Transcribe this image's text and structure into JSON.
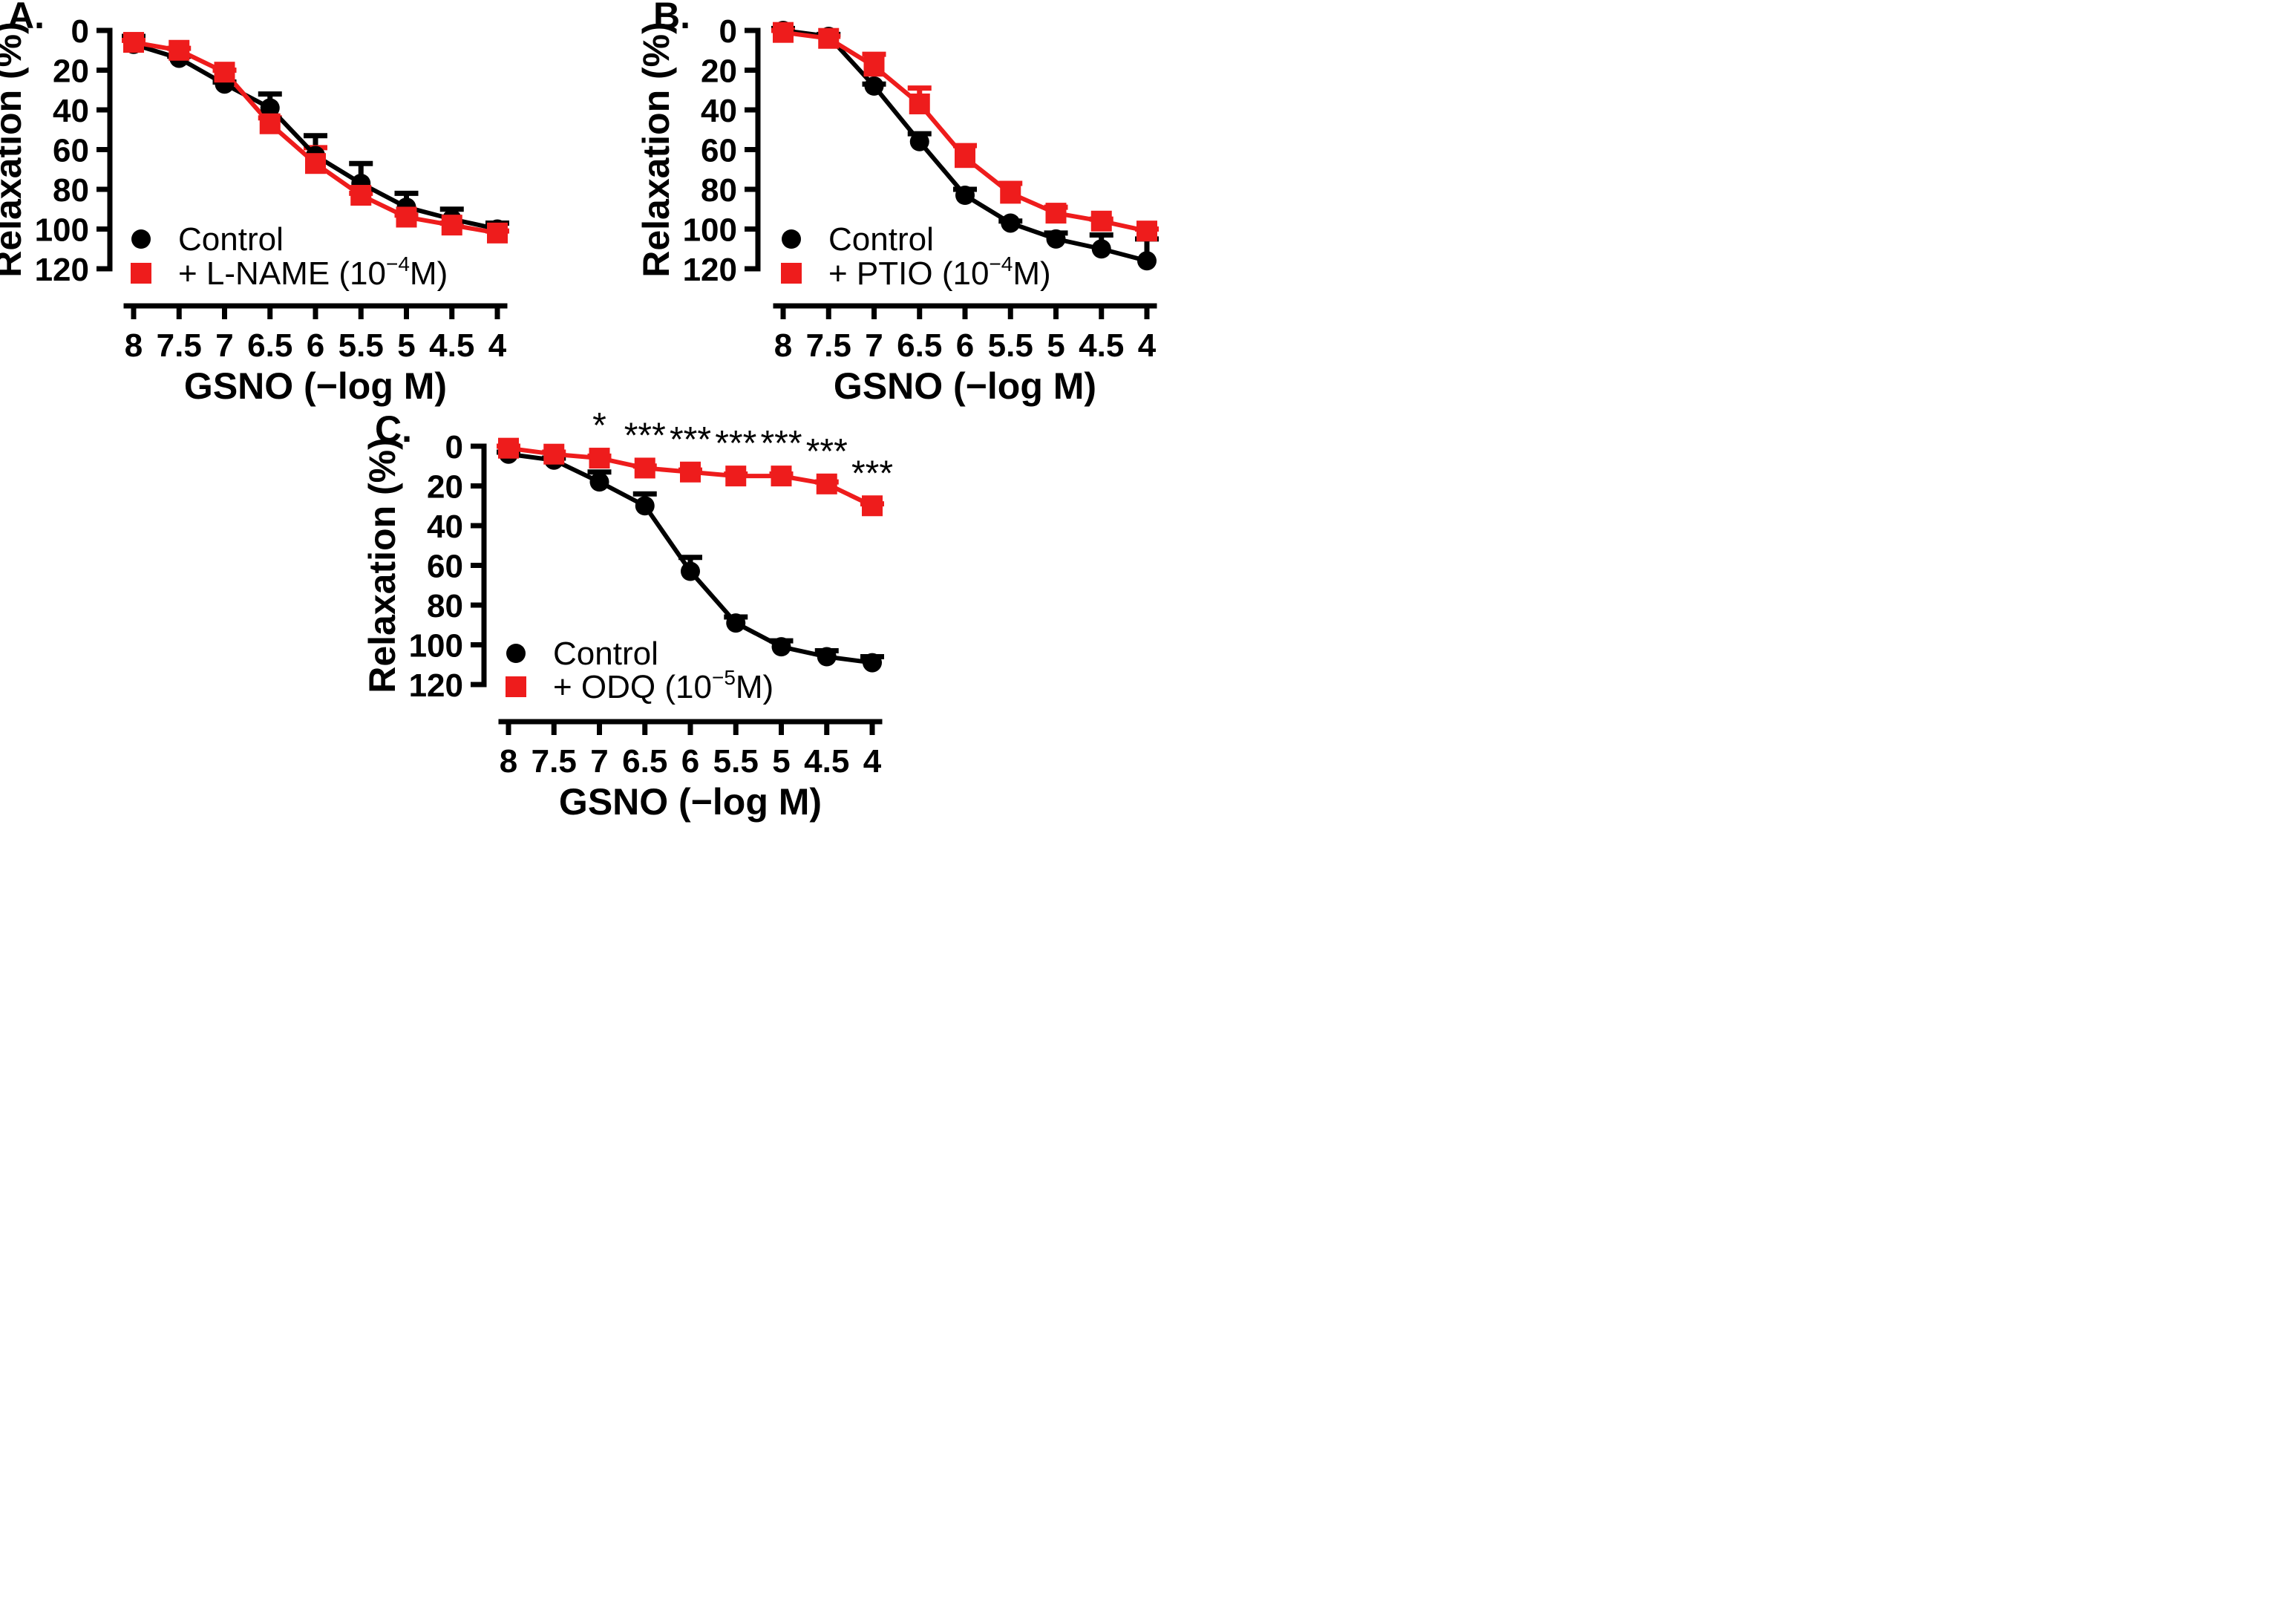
{
  "chart_data": [
    {
      "panel_label": "A.",
      "type": "line",
      "xlabel": "GSNO (−log M)",
      "ylabel": "Relaxation (%)",
      "x_ticks": [
        "8",
        "7.5",
        "7",
        "6.5",
        "6",
        "5.5",
        "5",
        "4.5",
        "4"
      ],
      "x": [
        8,
        7.5,
        7,
        6.5,
        6,
        5.5,
        5,
        4.5,
        4
      ],
      "xlim": [
        8,
        4
      ],
      "y_ticks": [
        "0",
        "20",
        "40",
        "60",
        "80",
        "100",
        "120"
      ],
      "ylim": [
        0,
        120
      ],
      "y_inverted": true,
      "legend_position": "bottom-left",
      "series": [
        {
          "name": "Control",
          "legend_label": "Control",
          "marker": "circle",
          "color": "#000000",
          "values": [
            7,
            14,
            27,
            39,
            63,
            77,
            89,
            95,
            100
          ],
          "errors": [
            4,
            1,
            1,
            7,
            10,
            10,
            7,
            5,
            3
          ]
        },
        {
          "name": "+ L-NAME",
          "legend_label": "+ L-NAME (10",
          "legend_sup": "−4",
          "legend_suffix": "M)",
          "marker": "square",
          "color": "#ee1c1c",
          "values": [
            6,
            10,
            21,
            47,
            67,
            83,
            94,
            98,
            102
          ],
          "errors": [
            1,
            1,
            1,
            3,
            8,
            1,
            1,
            1,
            1
          ]
        }
      ]
    },
    {
      "panel_label": "B.",
      "type": "line",
      "xlabel": "GSNO (−log M)",
      "ylabel": "Relaxation (%)",
      "x_ticks": [
        "8",
        "7.5",
        "7",
        "6.5",
        "6",
        "5.5",
        "5",
        "4.5",
        "4"
      ],
      "x": [
        8,
        7.5,
        7,
        6.5,
        6,
        5.5,
        5,
        4.5,
        4
      ],
      "xlim": [
        8,
        4
      ],
      "y_ticks": [
        "0",
        "20",
        "40",
        "60",
        "80",
        "100",
        "120"
      ],
      "ylim": [
        0,
        120
      ],
      "y_inverted": true,
      "legend_position": "bottom-left",
      "series": [
        {
          "name": "Control",
          "legend_label": "Control",
          "marker": "circle",
          "color": "#000000",
          "values": [
            0,
            3,
            28,
            56,
            83,
            97,
            105,
            110,
            116
          ],
          "errors": [
            1,
            1,
            1,
            4,
            3,
            1,
            3,
            7,
            11
          ]
        },
        {
          "name": "+ PTIO",
          "legend_label": "+ PTIO (10",
          "legend_sup": "−4",
          "legend_suffix": "M)",
          "marker": "square",
          "color": "#ee1c1c",
          "values": [
            1,
            4,
            18,
            37,
            64,
            82,
            92,
            96,
            101
          ],
          "errors": [
            1,
            1,
            6,
            8,
            6,
            5,
            3,
            1,
            1
          ]
        }
      ]
    },
    {
      "panel_label": "C.",
      "type": "line",
      "xlabel": "GSNO (−log M)",
      "ylabel": "Relaxation (%)",
      "x_ticks": [
        "8",
        "7.5",
        "7",
        "6.5",
        "6",
        "5.5",
        "5",
        "4.5",
        "4"
      ],
      "x": [
        8,
        7.5,
        7,
        6.5,
        6,
        5.5,
        5,
        4.5,
        4
      ],
      "xlim": [
        8,
        4
      ],
      "y_ticks": [
        "0",
        "20",
        "40",
        "60",
        "80",
        "100",
        "120"
      ],
      "ylim": [
        0,
        120
      ],
      "y_inverted": true,
      "legend_position": "bottom-left",
      "annotations": [
        "",
        "",
        "*",
        "***",
        "***",
        "***",
        "***",
        "***",
        "***"
      ],
      "series": [
        {
          "name": "Control",
          "legend_label": "Control",
          "marker": "circle",
          "color": "#000000",
          "values": [
            4,
            7,
            18,
            30,
            63,
            89,
            101,
            106,
            109
          ],
          "errors": [
            1,
            1,
            5,
            6,
            7,
            3,
            3,
            3,
            3
          ]
        },
        {
          "name": "+ ODQ",
          "legend_label": "+ ODQ (10",
          "legend_sup": "−5",
          "legend_suffix": "M)",
          "marker": "square",
          "color": "#ee1c1c",
          "values": [
            1,
            4,
            6,
            11,
            13,
            15,
            15,
            19,
            30
          ],
          "errors": [
            1,
            1,
            1,
            1,
            1,
            1,
            1,
            1,
            1
          ]
        }
      ]
    }
  ]
}
